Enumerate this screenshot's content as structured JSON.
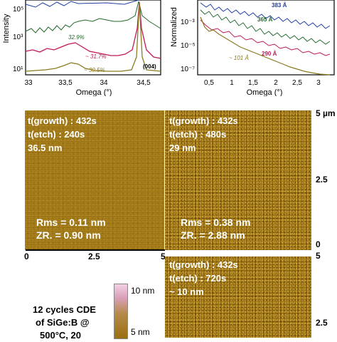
{
  "chart_data": [
    {
      "type": "line",
      "ylabel": "Intensity",
      "xlabel": "Omega (°)",
      "x_ticks": [
        "33",
        "33,5",
        "34",
        "34,5"
      ],
      "y_ticks": [
        "10⁵",
        "10³",
        "10¹"
      ],
      "yscale": "log",
      "annotation": "(004)",
      "series": [
        {
          "name": "32.9%",
          "color": "#1f6a2a"
        },
        {
          "name": "~ 31.7%",
          "color": "#c0175a"
        },
        {
          "name": "~ 30.5%",
          "color": "#8a7a20"
        }
      ]
    },
    {
      "type": "line",
      "ylabel": "Normalized",
      "xlabel": "Omega (°)",
      "x_ticks": [
        "0,5",
        "1",
        "1,5",
        "2",
        "2,5",
        "3"
      ],
      "y_ticks": [
        "10⁻³",
        "10⁻⁵",
        "10⁻⁷"
      ],
      "yscale": "log",
      "series": [
        {
          "name": "383 Å",
          "color": "#1f3fa0"
        },
        {
          "name": "365 Å",
          "color": "#1f6a2a"
        },
        {
          "name": "290 Å",
          "color": "#c0175a"
        },
        {
          "name": "~ 101 Å",
          "color": "#8a7a20"
        }
      ]
    }
  ],
  "afm_images": [
    {
      "growth": "t(growth) : 432s",
      "etch": "t(etch) : 240s",
      "thickness": "36.5 nm",
      "rms": "Rms = 0.11 nm",
      "zr": "ZR. = 0.90 nm"
    },
    {
      "growth": "t(growth) : 432s",
      "etch": "t(etch) : 480s",
      "thickness": "29 nm",
      "rms": "Rms = 0.38 nm",
      "zr": "ZR. = 2.88 nm"
    },
    {
      "growth": "t(growth) : 432s",
      "etch": "t(etch) : 720s",
      "thickness": "~ 10 nm"
    }
  ],
  "scale_axis": {
    "bottom": [
      "0",
      "2.5",
      "5"
    ],
    "right_top": [
      "5 µm",
      "2.5",
      "0"
    ],
    "right_bottom": [
      "5",
      "2.5"
    ]
  },
  "colorbar": {
    "top": "10 nm",
    "mid": "5 nm"
  },
  "caption": {
    "line1": "12 cycles CDE",
    "line2": "of SiGe:B @",
    "line3": "500°C, 20"
  }
}
